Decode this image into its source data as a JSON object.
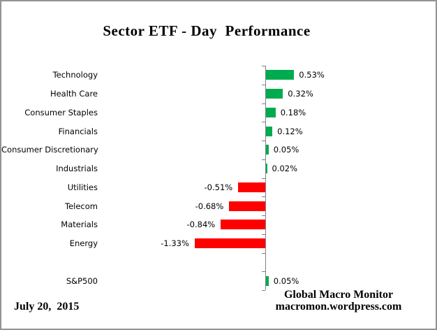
{
  "chart_data": {
    "type": "bar",
    "orientation": "horizontal",
    "title": "Sector ETF - Day  Performance",
    "categories": [
      "Technology",
      "Health Care",
      "Consumer Staples",
      "Financials",
      "Consumer Discretionary",
      "Industrials",
      "Utilities",
      "Telecom",
      "Materials",
      "Energy",
      "",
      "S&P500"
    ],
    "values": [
      0.53,
      0.32,
      0.18,
      0.12,
      0.05,
      0.02,
      -0.51,
      -0.68,
      -0.84,
      -1.33,
      null,
      0.05
    ],
    "value_labels": [
      "0.53%",
      "0.32%",
      "0.18%",
      "0.12%",
      "0.05%",
      "0.02%",
      "-0.51%",
      "-0.68%",
      "-0.84%",
      "-1.33%",
      "",
      "0.05%"
    ],
    "unit": "%",
    "grid": false,
    "legend": false,
    "colors": {
      "positive": "#00AB50",
      "negative": "#FF0000",
      "axis": "#808080",
      "text": "#000000"
    }
  },
  "footer": {
    "date": "July 20,  2015",
    "credit_line1": "Global Macro Monitor",
    "credit_line2": "macromon.wordpress.com"
  }
}
